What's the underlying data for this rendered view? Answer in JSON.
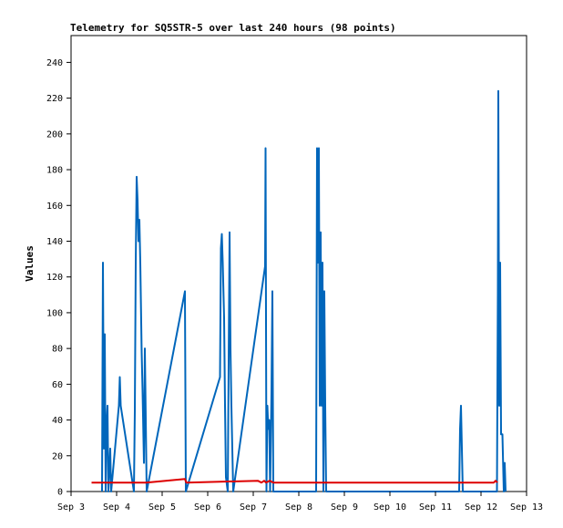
{
  "chart_data": {
    "type": "line",
    "title": "Telemetry for SQ5STR-5 over last 240 hours (98 points)",
    "xlabel": "",
    "ylabel": "Values",
    "xlim": [
      0,
      10
    ],
    "ylim": [
      0,
      255
    ],
    "x_ticks": [
      {
        "x": 0,
        "label": "Sep 3"
      },
      {
        "x": 1,
        "label": "Sep 4"
      },
      {
        "x": 2,
        "label": "Sep 5"
      },
      {
        "x": 3,
        "label": "Sep 6"
      },
      {
        "x": 4,
        "label": "Sep 7"
      },
      {
        "x": 5,
        "label": "Sep 8"
      },
      {
        "x": 6,
        "label": "Sep 9"
      },
      {
        "x": 7,
        "label": "Sep 10"
      },
      {
        "x": 8,
        "label": "Sep 11"
      },
      {
        "x": 9,
        "label": "Sep 12"
      },
      {
        "x": 10,
        "label": "Sep 13"
      }
    ],
    "y_ticks": [
      "0",
      "20",
      "40",
      "60",
      "80",
      "100",
      "120",
      "140",
      "160",
      "180",
      "200",
      "220",
      "240"
    ],
    "grid": false,
    "series": [
      {
        "color": "#0066bb",
        "points": [
          [
            0.68,
            0
          ],
          [
            0.69,
            65
          ],
          [
            0.7,
            128
          ],
          [
            0.72,
            24
          ],
          [
            0.74,
            88
          ],
          [
            0.76,
            0
          ],
          [
            0.78,
            37
          ],
          [
            0.8,
            48
          ],
          [
            0.82,
            0
          ],
          [
            0.86,
            24
          ],
          [
            0.88,
            0
          ],
          [
            1.05,
            48
          ],
          [
            1.07,
            64
          ],
          [
            1.09,
            48
          ],
          [
            1.38,
            0
          ],
          [
            1.4,
            45
          ],
          [
            1.42,
            128
          ],
          [
            1.44,
            176
          ],
          [
            1.46,
            163
          ],
          [
            1.48,
            140
          ],
          [
            1.5,
            152
          ],
          [
            1.52,
            128
          ],
          [
            1.55,
            78
          ],
          [
            1.57,
            56
          ],
          [
            1.6,
            16
          ],
          [
            1.62,
            80
          ],
          [
            1.64,
            41
          ],
          [
            1.66,
            0
          ],
          [
            2.5,
            112
          ],
          [
            2.52,
            0
          ],
          [
            3.27,
            64
          ],
          [
            3.29,
            136
          ],
          [
            3.31,
            144
          ],
          [
            3.33,
            128
          ],
          [
            3.36,
            97
          ],
          [
            3.38,
            48
          ],
          [
            3.4,
            8
          ],
          [
            3.44,
            0
          ],
          [
            3.48,
            145
          ],
          [
            3.5,
            80
          ],
          [
            3.52,
            48
          ],
          [
            3.56,
            0
          ],
          [
            4.26,
            126
          ],
          [
            4.27,
            192
          ],
          [
            4.29,
            0
          ],
          [
            4.31,
            48
          ],
          [
            4.33,
            35
          ],
          [
            4.35,
            40
          ],
          [
            4.37,
            0
          ],
          [
            4.4,
            56
          ],
          [
            4.42,
            112
          ],
          [
            4.44,
            0
          ],
          [
            5.38,
            0
          ],
          [
            5.4,
            192
          ],
          [
            5.42,
            128
          ],
          [
            5.44,
            192
          ],
          [
            5.46,
            48
          ],
          [
            5.48,
            145
          ],
          [
            5.5,
            48
          ],
          [
            5.52,
            128
          ],
          [
            5.54,
            0
          ],
          [
            5.56,
            112
          ],
          [
            5.58,
            48
          ],
          [
            5.6,
            0
          ],
          [
            8.52,
            0
          ],
          [
            8.54,
            35
          ],
          [
            8.56,
            48
          ],
          [
            8.58,
            24
          ],
          [
            8.6,
            0
          ],
          [
            9.35,
            0
          ],
          [
            9.37,
            112
          ],
          [
            9.38,
            224
          ],
          [
            9.4,
            48
          ],
          [
            9.42,
            128
          ],
          [
            9.44,
            32
          ],
          [
            9.47,
            32
          ],
          [
            9.5,
            0
          ],
          [
            9.52,
            16
          ],
          [
            9.54,
            0
          ]
        ]
      },
      {
        "color": "#dd0000",
        "points": [
          [
            0.45,
            5
          ],
          [
            1.65,
            5
          ],
          [
            2.5,
            7
          ],
          [
            2.53,
            5
          ],
          [
            4.1,
            6
          ],
          [
            4.18,
            5
          ],
          [
            4.24,
            6
          ],
          [
            4.28,
            5
          ],
          [
            4.36,
            6
          ],
          [
            4.44,
            5
          ],
          [
            9.28,
            5
          ],
          [
            9.32,
            6
          ],
          [
            9.36,
            5
          ]
        ]
      }
    ]
  }
}
